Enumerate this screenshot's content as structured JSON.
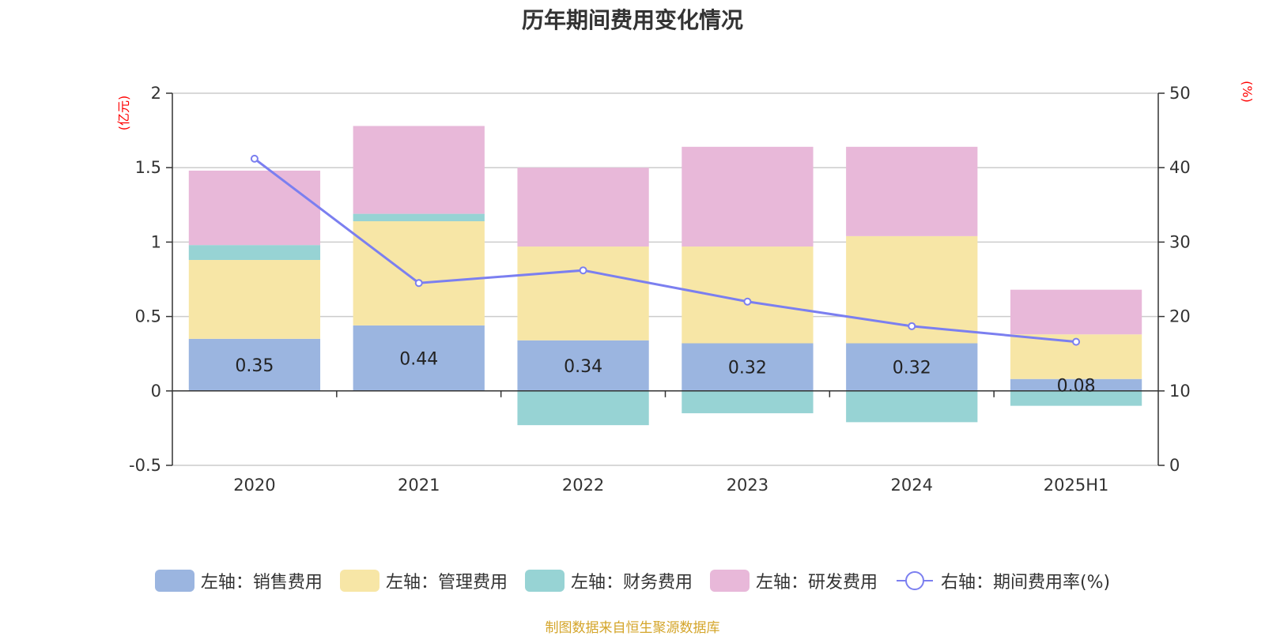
{
  "chart_data": {
    "type": "bar",
    "title": "历年期间费用变化情况",
    "categories": [
      "2020",
      "2021",
      "2022",
      "2023",
      "2024",
      "2025H1"
    ],
    "series": [
      {
        "name": "左轴：销售费用",
        "axis": "left",
        "stack": true,
        "color": "#9bb5e0",
        "values": [
          0.35,
          0.44,
          0.34,
          0.32,
          0.32,
          0.08
        ],
        "show_labels": true
      },
      {
        "name": "左轴：管理费用",
        "axis": "left",
        "stack": true,
        "color": "#f7e6a6",
        "values": [
          0.53,
          0.7,
          0.63,
          0.65,
          0.72,
          0.3
        ]
      },
      {
        "name": "左轴：财务费用",
        "axis": "left",
        "stack": true,
        "color": "#97d3d4",
        "values": [
          0.1,
          0.05,
          -0.23,
          -0.15,
          -0.21,
          -0.1
        ]
      },
      {
        "name": "左轴：研发费用",
        "axis": "left",
        "stack": true,
        "color": "#e8b8d9",
        "values": [
          0.5,
          0.59,
          0.53,
          0.67,
          0.6,
          0.3
        ]
      },
      {
        "name": "右轴：期间费用率(%)",
        "axis": "right",
        "type": "line",
        "color": "#7b7ff0",
        "values": [
          41.2,
          24.5,
          26.2,
          22.0,
          18.7,
          16.6
        ]
      }
    ],
    "left_axis": {
      "unit": "(亿元)",
      "ylim": [
        -0.5,
        2
      ],
      "ticks": [
        "-0.5",
        "0",
        "0.5",
        "1",
        "1.5",
        "2"
      ]
    },
    "right_axis": {
      "unit": "(%)",
      "ylim": [
        0,
        50
      ],
      "ticks": [
        "0",
        "10",
        "20",
        "30",
        "40",
        "50"
      ]
    },
    "grid": true,
    "legend_position": "bottom"
  },
  "source": "制图数据来自恒生聚源数据库"
}
